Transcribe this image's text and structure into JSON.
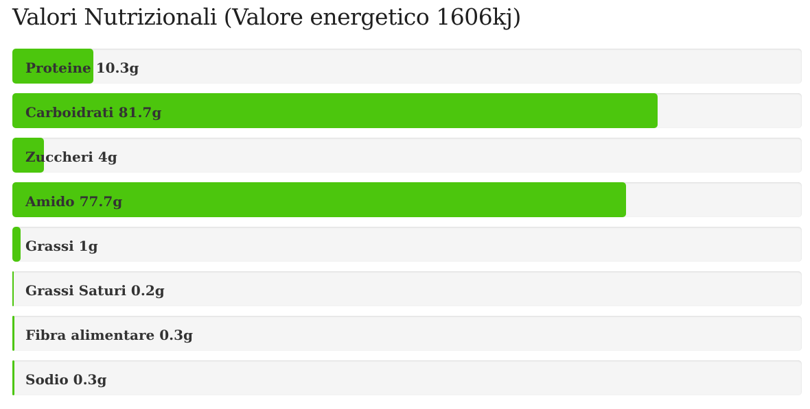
{
  "title": "Valori Nutrizionali (Valore energetico 1606kj)",
  "energy_label": "Valore energetico",
  "energy_value_kj": 1606,
  "chart_data": {
    "type": "bar",
    "orientation": "horizontal",
    "title": "Valori Nutrizionali (Valore energetico 1606kj)",
    "unit": "g",
    "x_range": [
      0,
      100
    ],
    "grid": false,
    "legend": false,
    "bar_color": "#4cc60d",
    "track_color": "#f5f5f5",
    "categories": [
      "Proteine",
      "Carboidrati",
      "Zuccheri",
      "Amido",
      "Grassi",
      "Grassi Saturi",
      "Fibra alimentare",
      "Sodio"
    ],
    "values": [
      10.3,
      81.7,
      4,
      77.7,
      1,
      0.2,
      0.3,
      0.3
    ],
    "bars": [
      {
        "label": "Proteine",
        "value": 10.3,
        "display": "Proteine 10.3g",
        "percent": 10.3
      },
      {
        "label": "Carboidrati",
        "value": 81.7,
        "display": "Carboidrati 81.7g",
        "percent": 81.7
      },
      {
        "label": "Zuccheri",
        "value": 4,
        "display": "Zuccheri 4g",
        "percent": 4
      },
      {
        "label": "Amido",
        "value": 77.7,
        "display": "Amido 77.7g",
        "percent": 77.7
      },
      {
        "label": "Grassi",
        "value": 1,
        "display": "Grassi 1g",
        "percent": 1
      },
      {
        "label": "Grassi Saturi",
        "value": 0.2,
        "display": "Grassi Saturi 0.2g",
        "percent": 0.2
      },
      {
        "label": "Fibra alimentare",
        "value": 0.3,
        "display": "Fibra alimentare 0.3g",
        "percent": 0.3
      },
      {
        "label": "Sodio",
        "value": 0.3,
        "display": "Sodio 0.3g",
        "percent": 0.3
      }
    ]
  }
}
